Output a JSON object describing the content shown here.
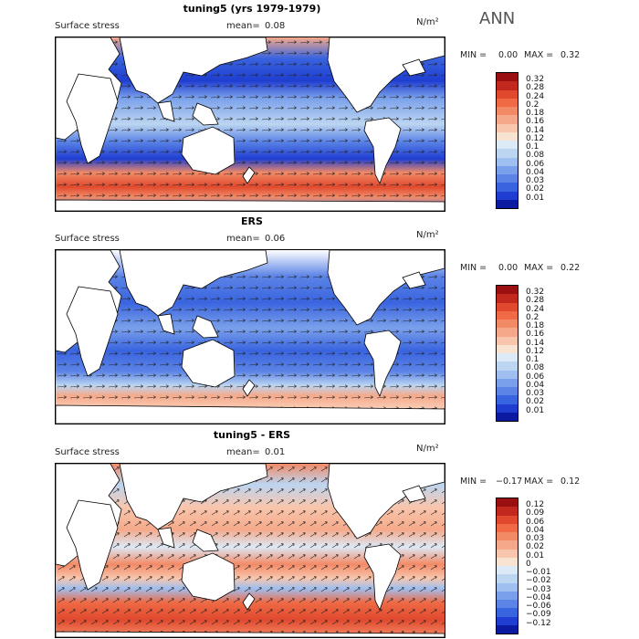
{
  "season": "ANN",
  "panels": [
    {
      "id": "model",
      "title": "tuning5 (yrs 1979-1979)",
      "variable": "Surface stress",
      "mean_label": "mean=",
      "mean_value": "0.08",
      "units": "N/m²",
      "min_label": "MIN =",
      "min_value": "0.00",
      "max_label": "MAX =",
      "max_value": "0.32",
      "levels": [
        "0.32",
        "0.28",
        "0.24",
        "0.2",
        "0.18",
        "0.16",
        "0.14",
        "0.12",
        "0.1",
        "0.08",
        "0.06",
        "0.04",
        "0.03",
        "0.02",
        "0.01"
      ],
      "colors": [
        "#9a0f0f",
        "#c3281f",
        "#e0492e",
        "#ef6a45",
        "#f38a66",
        "#f6a98a",
        "#f8c6ad",
        "#f8e2d2",
        "#dce9f6",
        "#bcd5f1",
        "#9ebff0",
        "#7aa0eb",
        "#5c84e6",
        "#3964df",
        "#1f3ed1",
        "#0b1aa0"
      ]
    },
    {
      "id": "obs",
      "title": "ERS",
      "variable": "Surface stress",
      "mean_label": "mean=",
      "mean_value": "0.06",
      "units": "N/m²",
      "min_label": "MIN =",
      "min_value": "0.00",
      "max_label": "MAX =",
      "max_value": "0.22",
      "levels": [
        "0.32",
        "0.28",
        "0.24",
        "0.2",
        "0.18",
        "0.16",
        "0.14",
        "0.12",
        "0.1",
        "0.08",
        "0.06",
        "0.04",
        "0.03",
        "0.02",
        "0.01"
      ],
      "colors": [
        "#9a0f0f",
        "#c3281f",
        "#e0492e",
        "#ef6a45",
        "#f38a66",
        "#f6a98a",
        "#f8c6ad",
        "#f8e2d2",
        "#dce9f6",
        "#bcd5f1",
        "#9ebff0",
        "#7aa0eb",
        "#5c84e6",
        "#3964df",
        "#1f3ed1",
        "#0b1aa0"
      ]
    },
    {
      "id": "diff",
      "title": "tuning5 - ERS",
      "variable": "Surface stress",
      "mean_label": "mean=",
      "mean_value": "0.01",
      "units": "N/m²",
      "min_label": "MIN =",
      "min_value": "−0.17",
      "max_label": "MAX =",
      "max_value": "0.12",
      "levels": [
        "0.12",
        "0.09",
        "0.06",
        "0.04",
        "0.03",
        "0.02",
        "0.01",
        "0",
        "−0.01",
        "−0.02",
        "−0.03",
        "−0.04",
        "−0.06",
        "−0.09",
        "−0.12"
      ],
      "colors": [
        "#9a0f0f",
        "#c3281f",
        "#e0492e",
        "#ef6a45",
        "#f38a66",
        "#f6a98a",
        "#f8c6ad",
        "#f8e2d2",
        "#dce9f6",
        "#bcd5f1",
        "#9ebff0",
        "#7aa0eb",
        "#5c84e6",
        "#3964df",
        "#1f3ed1",
        "#0b1aa0"
      ]
    }
  ]
}
